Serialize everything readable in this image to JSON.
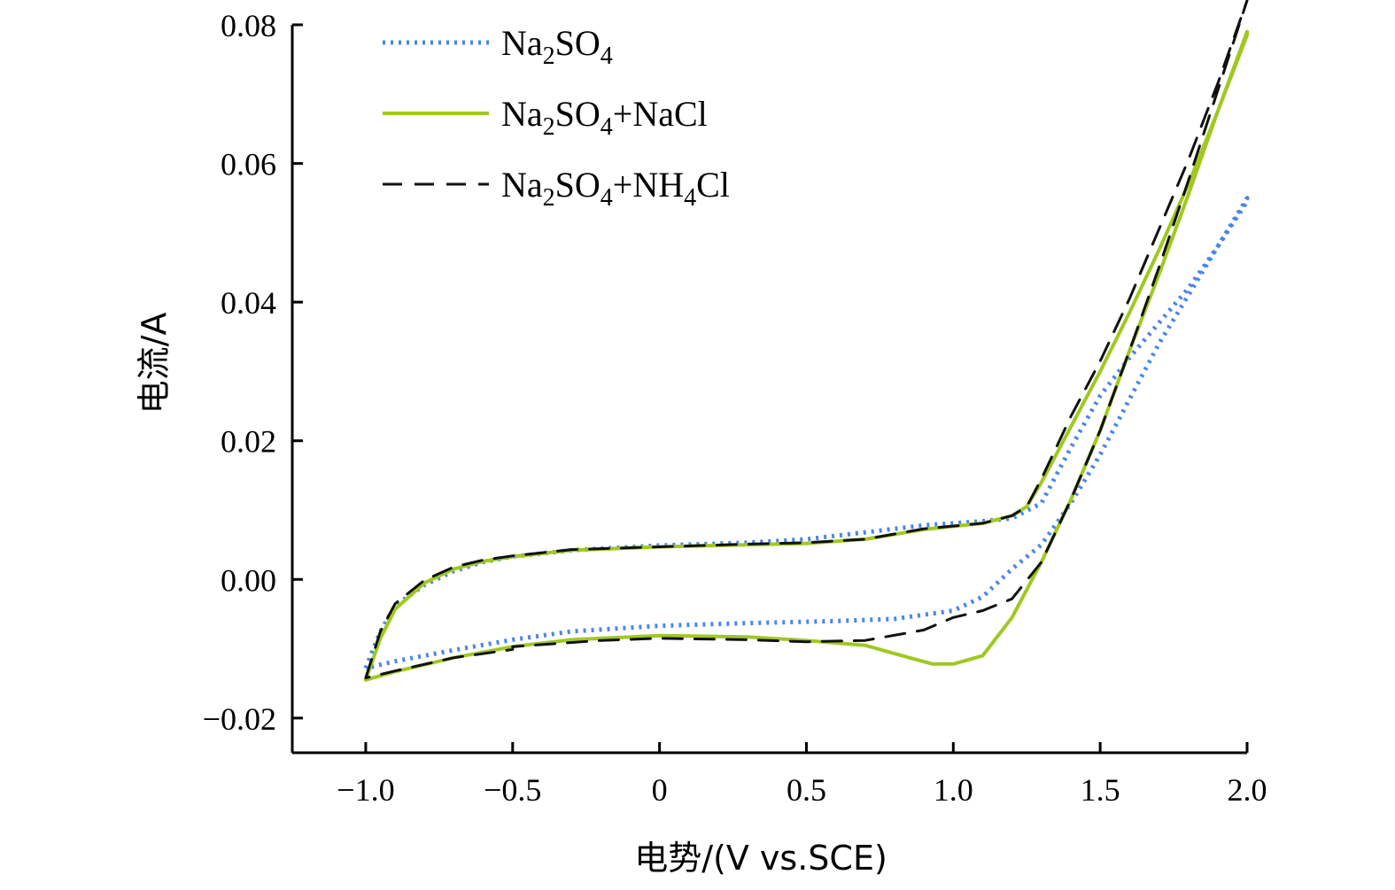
{
  "chart_data": {
    "type": "line",
    "xlabel": "电势/(V vs.SCE)",
    "ylabel": "电流/A",
    "xlim": [
      -1.25,
      2.0
    ],
    "ylim": [
      -0.025,
      0.08
    ],
    "xticks": [
      -1.0,
      -0.5,
      0,
      0.5,
      1.0,
      1.5,
      2.0
    ],
    "xtick_labels": [
      "−1.0",
      "−0.5",
      "0",
      "0.5",
      "1.0",
      "1.5",
      "2.0"
    ],
    "yticks": [
      -0.02,
      0.0,
      0.02,
      0.04,
      0.06,
      0.08
    ],
    "ytick_labels": [
      "−0.02",
      "0.00",
      "0.02",
      "0.04",
      "0.06",
      "0.08"
    ],
    "grid": false,
    "legend_position": "top-left",
    "series": [
      {
        "name": "Na2SO4",
        "legend": {
          "base": "Na",
          "sub1": "2",
          "mid": "SO",
          "sub2": "4",
          "rest": "",
          "sub3": "",
          "tail": ""
        },
        "color": "#4a86e8",
        "style": "dotted",
        "forward": [
          [
            -1.0,
            -0.0128
          ],
          [
            -0.95,
            -0.0075
          ],
          [
            -0.9,
            -0.0038
          ],
          [
            -0.8,
            -0.0008
          ],
          [
            -0.7,
            0.0012
          ],
          [
            -0.6,
            0.0025
          ],
          [
            -0.5,
            0.0033
          ],
          [
            -0.3,
            0.0042
          ],
          [
            0.0,
            0.0049
          ],
          [
            0.3,
            0.0053
          ],
          [
            0.5,
            0.0058
          ],
          [
            0.7,
            0.0068
          ],
          [
            0.9,
            0.0078
          ],
          [
            1.1,
            0.0084
          ],
          [
            1.2,
            0.0088
          ],
          [
            1.3,
            0.011
          ],
          [
            1.4,
            0.019
          ],
          [
            1.5,
            0.0265
          ],
          [
            1.6,
            0.032
          ],
          [
            1.7,
            0.037
          ],
          [
            1.8,
            0.042
          ],
          [
            1.9,
            0.048
          ],
          [
            2.0,
            0.055
          ]
        ],
        "reverse": [
          [
            2.0,
            0.0545
          ],
          [
            1.9,
            0.048
          ],
          [
            1.8,
            0.041
          ],
          [
            1.7,
            0.034
          ],
          [
            1.6,
            0.026
          ],
          [
            1.5,
            0.018
          ],
          [
            1.4,
            0.011
          ],
          [
            1.3,
            0.005
          ],
          [
            1.2,
            0.0015
          ],
          [
            1.1,
            -0.0025
          ],
          [
            1.0,
            -0.0045
          ],
          [
            0.8,
            -0.0057
          ],
          [
            0.6,
            -0.006
          ],
          [
            0.3,
            -0.0063
          ],
          [
            0.0,
            -0.0067
          ],
          [
            -0.3,
            -0.0075
          ],
          [
            -0.5,
            -0.0087
          ],
          [
            -0.7,
            -0.0102
          ],
          [
            -0.9,
            -0.0118
          ],
          [
            -1.0,
            -0.0128
          ]
        ]
      },
      {
        "name": "Na2SO4+NaCl",
        "legend": {
          "base": "Na",
          "sub1": "2",
          "mid": "SO",
          "sub2": "4",
          "rest": "+NaCl",
          "sub3": "",
          "tail": ""
        },
        "color": "#a0c820",
        "style": "solid",
        "forward": [
          [
            -1.0,
            -0.0145
          ],
          [
            -0.95,
            -0.0085
          ],
          [
            -0.9,
            -0.0043
          ],
          [
            -0.8,
            -0.0005
          ],
          [
            -0.7,
            0.0015
          ],
          [
            -0.6,
            0.0026
          ],
          [
            -0.5,
            0.0033
          ],
          [
            -0.3,
            0.0042
          ],
          [
            0.0,
            0.0047
          ],
          [
            0.3,
            0.005
          ],
          [
            0.5,
            0.0052
          ],
          [
            0.7,
            0.0058
          ],
          [
            0.9,
            0.0072
          ],
          [
            1.1,
            0.0081
          ],
          [
            1.2,
            0.0092
          ],
          [
            1.25,
            0.0105
          ],
          [
            1.3,
            0.014
          ],
          [
            1.4,
            0.022
          ],
          [
            1.5,
            0.03
          ],
          [
            1.6,
            0.0385
          ],
          [
            1.7,
            0.0475
          ],
          [
            1.8,
            0.057
          ],
          [
            1.9,
            0.0675
          ],
          [
            2.0,
            0.0785
          ]
        ],
        "reverse": [
          [
            2.0,
            0.079
          ],
          [
            1.9,
            0.0675
          ],
          [
            1.8,
            0.0555
          ],
          [
            1.7,
            0.044
          ],
          [
            1.6,
            0.033
          ],
          [
            1.5,
            0.0215
          ],
          [
            1.4,
            0.0115
          ],
          [
            1.3,
            0.0025
          ],
          [
            1.2,
            -0.0055
          ],
          [
            1.1,
            -0.011
          ],
          [
            1.0,
            -0.0122
          ],
          [
            0.93,
            -0.0122
          ],
          [
            0.85,
            -0.0113
          ],
          [
            0.7,
            -0.0095
          ],
          [
            0.5,
            -0.0088
          ],
          [
            0.3,
            -0.0083
          ],
          [
            0.0,
            -0.0081
          ],
          [
            -0.3,
            -0.0087
          ],
          [
            -0.5,
            -0.0097
          ],
          [
            -0.7,
            -0.0113
          ],
          [
            -0.9,
            -0.0133
          ],
          [
            -1.0,
            -0.0145
          ]
        ]
      },
      {
        "name": "Na2SO4+NH4Cl",
        "legend": {
          "base": "Na",
          "sub1": "2",
          "mid": "SO",
          "sub2": "4",
          "rest": "+NH",
          "sub3": "4",
          "tail": "Cl"
        },
        "color": "#111111",
        "style": "dashed",
        "forward": [
          [
            -1.0,
            -0.0142
          ],
          [
            -0.95,
            -0.0075
          ],
          [
            -0.9,
            -0.0035
          ],
          [
            -0.8,
            -0.0001
          ],
          [
            -0.7,
            0.0018
          ],
          [
            -0.6,
            0.0028
          ],
          [
            -0.5,
            0.0034
          ],
          [
            -0.3,
            0.0043
          ],
          [
            0.0,
            0.0047
          ],
          [
            0.3,
            0.0051
          ],
          [
            0.5,
            0.0053
          ],
          [
            0.7,
            0.0058
          ],
          [
            0.9,
            0.0073
          ],
          [
            1.1,
            0.0081
          ],
          [
            1.2,
            0.0092
          ],
          [
            1.25,
            0.0105
          ],
          [
            1.3,
            0.0145
          ],
          [
            1.4,
            0.0235
          ],
          [
            1.5,
            0.0315
          ],
          [
            1.6,
            0.0405
          ],
          [
            1.7,
            0.0505
          ],
          [
            1.8,
            0.0605
          ],
          [
            1.9,
            0.0715
          ],
          [
            2.0,
            0.0835
          ]
        ],
        "reverse": [
          [
            2.0,
            0.0835
          ],
          [
            1.9,
            0.0705
          ],
          [
            1.8,
            0.0575
          ],
          [
            1.7,
            0.045
          ],
          [
            1.6,
            0.033
          ],
          [
            1.5,
            0.0215
          ],
          [
            1.4,
            0.0115
          ],
          [
            1.3,
            0.0025
          ],
          [
            1.2,
            -0.0028
          ],
          [
            1.1,
            -0.0045
          ],
          [
            1.0,
            -0.0055
          ],
          [
            0.9,
            -0.0073
          ],
          [
            0.7,
            -0.0088
          ],
          [
            0.5,
            -0.009
          ],
          [
            0.3,
            -0.0087
          ],
          [
            0.0,
            -0.0085
          ],
          [
            -0.2,
            -0.0088
          ],
          [
            -0.5,
            -0.0097
          ],
          [
            -0.5,
            -0.0101
          ],
          [
            -0.7,
            -0.0113
          ],
          [
            -0.9,
            -0.0132
          ],
          [
            -1.0,
            -0.0142
          ]
        ]
      }
    ]
  }
}
